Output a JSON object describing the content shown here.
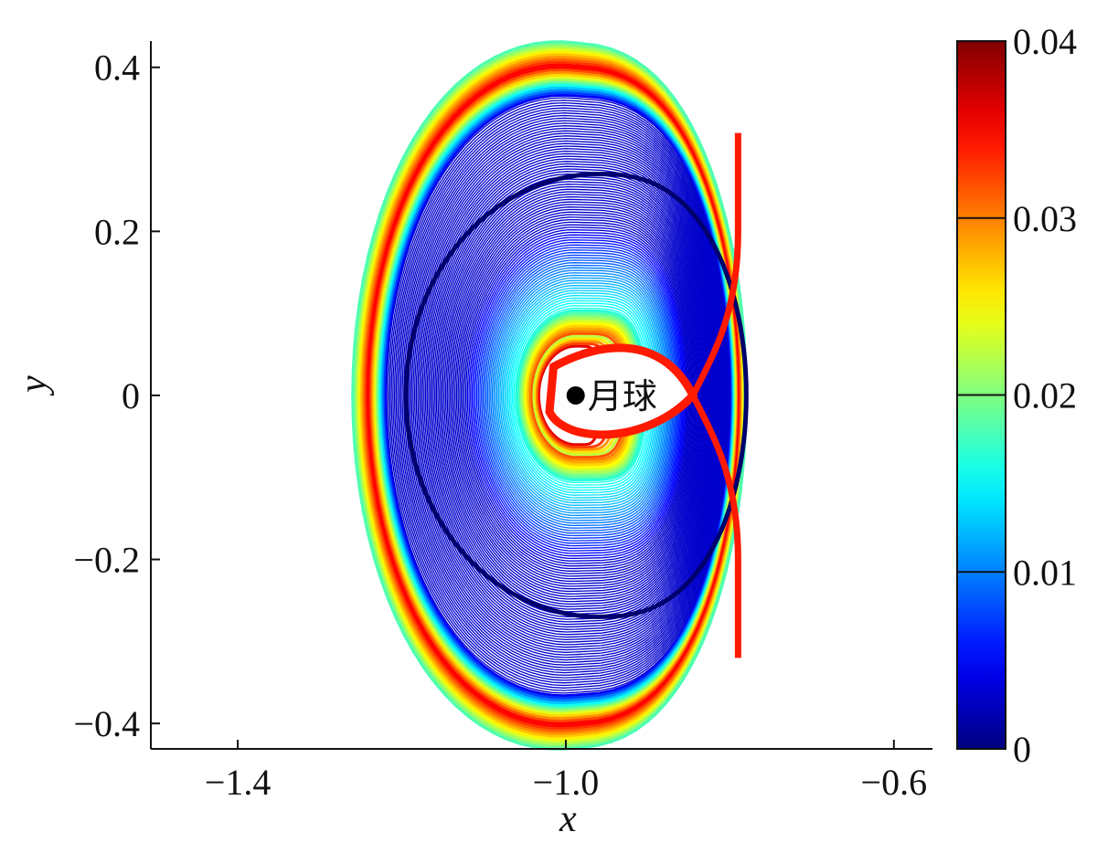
{
  "chart_data": {
    "type": "contour",
    "title": "",
    "xlabel": "x",
    "ylabel": "y",
    "xlim": [
      -1.506,
      -0.553
    ],
    "ylim": [
      -0.431,
      0.432
    ],
    "xticks": [
      {
        "value": -1.4,
        "label": "−1.4"
      },
      {
        "value": -1.0,
        "label": "−1.0"
      },
      {
        "value": -0.6,
        "label": "−0.6"
      }
    ],
    "yticks": [
      {
        "value": 0.4,
        "label": "0.4"
      },
      {
        "value": 0.2,
        "label": "0.2"
      },
      {
        "value": 0,
        "label": "0"
      },
      {
        "value": -0.2,
        "label": "−0.2"
      },
      {
        "value": -0.4,
        "label": "−0.4"
      }
    ],
    "grid": false,
    "colorbar": {
      "range": [
        0,
        0.04
      ],
      "colormap": "jet",
      "ticks": [
        {
          "value": 0,
          "label": "0"
        },
        {
          "value": 0.01,
          "label": "0.01"
        },
        {
          "value": 0.02,
          "label": "0.02"
        },
        {
          "value": 0.03,
          "label": "0.03"
        },
        {
          "value": 0.04,
          "label": "0.04"
        }
      ],
      "placement": "right"
    },
    "moon": {
      "x": -0.988,
      "y": 0,
      "label": "月球"
    },
    "highlight_orbit_amplitude_y": 0.27,
    "outer_boundary": {
      "x_min": -1.26,
      "x_max": -0.78,
      "y_max": 0.43
    },
    "axis_color": "#111111"
  }
}
